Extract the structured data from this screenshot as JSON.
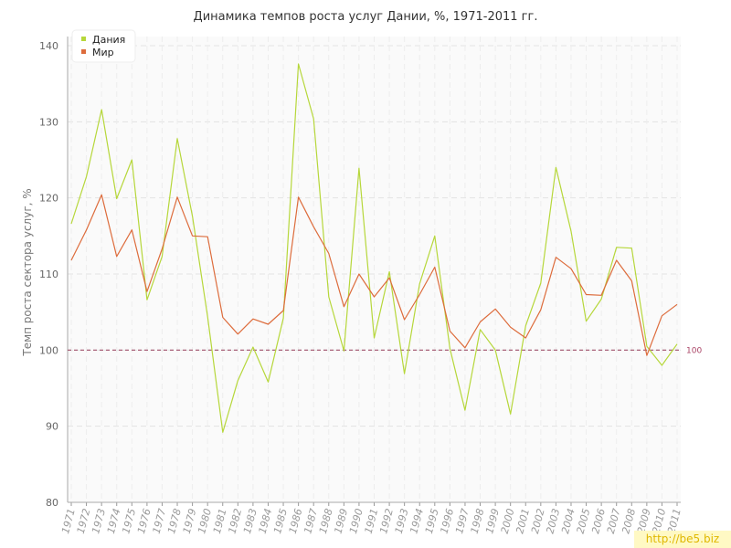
{
  "chart_data": {
    "type": "line",
    "title": "Динамика темпов роста услуг Дании, %, 1971-2011 гг.",
    "ylabel": "Темп роста сектора услуг, %",
    "xlabel": "",
    "ylim": [
      80,
      140
    ],
    "yticks": [
      80,
      90,
      100,
      110,
      120,
      130,
      140
    ],
    "grid": true,
    "legend_position": "top-left",
    "reference_line": {
      "value": 100,
      "label": "100",
      "color": "#a0506a"
    },
    "x": [
      "1971",
      "1972",
      "1973",
      "1974",
      "1975",
      "1976",
      "1977",
      "1978",
      "1979",
      "1980",
      "1981",
      "1982",
      "1983",
      "1984",
      "1985",
      "1986",
      "1987",
      "1988",
      "1989",
      "1990",
      "1991",
      "1992",
      "1993",
      "1994",
      "1995",
      "1996",
      "1997",
      "1998",
      "1999",
      "2000",
      "2001",
      "2002",
      "2003",
      "2004",
      "2005",
      "2006",
      "2007",
      "2008",
      "2009",
      "2010",
      "2011"
    ],
    "series": [
      {
        "name": "Дания",
        "color": "#b6d73a",
        "values": [
          116.6,
          122.8,
          131.6,
          119.9,
          125.0,
          106.6,
          112.3,
          127.8,
          117.6,
          104.4,
          89.2,
          96.0,
          100.4,
          95.8,
          104.2,
          137.6,
          130.4,
          107.0,
          99.9,
          123.9,
          101.6,
          110.3,
          96.9,
          108.7,
          115.0,
          100.2,
          92.1,
          102.7,
          100.0,
          91.6,
          103.2,
          108.8,
          124.0,
          115.6,
          103.8,
          106.7,
          113.5,
          113.4,
          100.5,
          98.0,
          100.8
        ]
      },
      {
        "name": "Мир",
        "color": "#dd6c3c",
        "values": [
          111.8,
          115.8,
          120.4,
          112.3,
          115.8,
          107.7,
          113.3,
          120.1,
          115.0,
          114.9,
          104.3,
          102.1,
          104.1,
          103.4,
          105.2,
          120.1,
          116.2,
          112.7,
          105.7,
          110.0,
          107.0,
          109.5,
          104.0,
          107.3,
          110.9,
          102.5,
          100.3,
          103.7,
          105.4,
          103.0,
          101.6,
          105.3,
          112.2,
          110.7,
          107.3,
          107.2,
          111.8,
          109.1,
          99.3,
          104.5,
          106.0
        ]
      }
    ]
  },
  "watermark": "http://be5.biz"
}
